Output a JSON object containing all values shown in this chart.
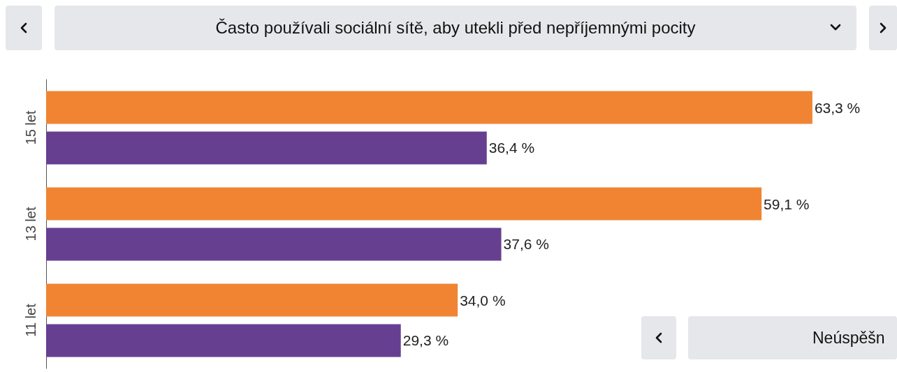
{
  "chart_data": {
    "type": "bar",
    "orientation": "horizontal",
    "title": "Často používali sociální sítě, aby utekli před nepříjemnými pocity",
    "categories": [
      "15 let",
      "13 let",
      "11 let"
    ],
    "series": [
      {
        "color": "#f08433",
        "values": [
          63.3,
          59.1,
          34.0
        ],
        "value_labels": [
          "63,3 %",
          "59,1 %",
          "34,0 %"
        ]
      },
      {
        "color": "#663f91",
        "values": [
          36.4,
          37.6,
          29.3
        ],
        "value_labels": [
          "36,4 %",
          "37,6 %",
          "29,3 %"
        ]
      }
    ],
    "tick_labels": "y",
    "annotations": [
      "Neúspěšn"
    ]
  }
}
